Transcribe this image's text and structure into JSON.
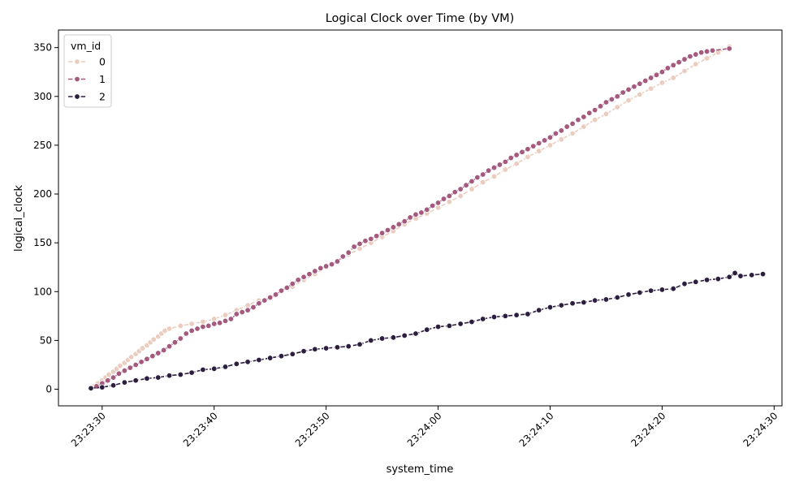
{
  "chart_data": {
    "type": "line",
    "title": "Logical Clock over Time (by VM)",
    "xlabel": "system_time",
    "ylabel": "logical_clock",
    "x_ticks": [
      "23:23:30",
      "23:23:40",
      "23:23:50",
      "23:24:00",
      "23:24:10",
      "23:24:20",
      "23:24:30"
    ],
    "x_tick_values": [
      1.0,
      11.0,
      21.0,
      31.0,
      41.0,
      51.0,
      61.0
    ],
    "x_unit": "seconds after 23:23:29",
    "xlim": [
      -2.9,
      61.7
    ],
    "y_ticks": [
      0,
      50,
      100,
      150,
      200,
      250,
      300,
      350
    ],
    "ylim": [
      -17,
      368
    ],
    "legend": {
      "title": "vm_id",
      "placement": "top-left"
    },
    "grid": false,
    "series": [
      {
        "name": "0",
        "color": "#ebcdc0",
        "points": [
          [
            0.0,
            1
          ],
          [
            0.3,
            3
          ],
          [
            0.6,
            6
          ],
          [
            1.0,
            9
          ],
          [
            1.3,
            12
          ],
          [
            1.6,
            15
          ],
          [
            2.0,
            18
          ],
          [
            2.3,
            21
          ],
          [
            2.6,
            24
          ],
          [
            3.0,
            27
          ],
          [
            3.3,
            30
          ],
          [
            3.6,
            33
          ],
          [
            4.0,
            36
          ],
          [
            4.3,
            39
          ],
          [
            4.6,
            42
          ],
          [
            5.0,
            45
          ],
          [
            5.3,
            48
          ],
          [
            5.6,
            51
          ],
          [
            6.0,
            54
          ],
          [
            6.3,
            57
          ],
          [
            6.6,
            60
          ],
          [
            7.0,
            62
          ],
          [
            8.0,
            65
          ],
          [
            9.0,
            67
          ],
          [
            10.0,
            69
          ],
          [
            11.0,
            72
          ],
          [
            12.0,
            76
          ],
          [
            13.0,
            81
          ],
          [
            14.0,
            86
          ],
          [
            15.0,
            91
          ],
          [
            16.0,
            95
          ],
          [
            17.0,
            100
          ],
          [
            18.0,
            105
          ],
          [
            19.0,
            112
          ],
          [
            20.0,
            118
          ],
          [
            21.0,
            125
          ],
          [
            22.0,
            131
          ],
          [
            23.0,
            138
          ],
          [
            24.0,
            144
          ],
          [
            25.0,
            150
          ],
          [
            26.0,
            156
          ],
          [
            27.0,
            162
          ],
          [
            28.0,
            169
          ],
          [
            29.0,
            175
          ],
          [
            30.0,
            180
          ],
          [
            31.0,
            186
          ],
          [
            32.0,
            192
          ],
          [
            33.0,
            198
          ],
          [
            34.0,
            205
          ],
          [
            35.0,
            212
          ],
          [
            36.0,
            218
          ],
          [
            37.0,
            225
          ],
          [
            38.0,
            231
          ],
          [
            39.0,
            238
          ],
          [
            40.0,
            244
          ],
          [
            41.0,
            250
          ],
          [
            42.0,
            256
          ],
          [
            43.0,
            262
          ],
          [
            44.0,
            269
          ],
          [
            45.0,
            276
          ],
          [
            46.0,
            282
          ],
          [
            47.0,
            289
          ],
          [
            48.0,
            296
          ],
          [
            49.0,
            302
          ],
          [
            50.0,
            308
          ],
          [
            51.0,
            314
          ],
          [
            52.0,
            319
          ],
          [
            53.0,
            326
          ],
          [
            54.0,
            333
          ],
          [
            55.0,
            339
          ],
          [
            56.0,
            345
          ],
          [
            57.0,
            351
          ]
        ]
      },
      {
        "name": "1",
        "color": "#a4597e",
        "points": [
          [
            0.0,
            1
          ],
          [
            0.5,
            3
          ],
          [
            1.0,
            6
          ],
          [
            1.5,
            9
          ],
          [
            2.0,
            12
          ],
          [
            2.5,
            16
          ],
          [
            3.0,
            19
          ],
          [
            3.5,
            22
          ],
          [
            4.0,
            25
          ],
          [
            4.5,
            28
          ],
          [
            5.0,
            31
          ],
          [
            5.5,
            34
          ],
          [
            6.0,
            37
          ],
          [
            6.5,
            40
          ],
          [
            7.0,
            44
          ],
          [
            7.5,
            48
          ],
          [
            8.0,
            52
          ],
          [
            8.5,
            57
          ],
          [
            9.0,
            60
          ],
          [
            9.5,
            62
          ],
          [
            10.0,
            64
          ],
          [
            10.5,
            65
          ],
          [
            11.0,
            67
          ],
          [
            11.5,
            68
          ],
          [
            12.0,
            70
          ],
          [
            12.5,
            72
          ],
          [
            13.0,
            77
          ],
          [
            13.5,
            79
          ],
          [
            14.0,
            81
          ],
          [
            14.5,
            84
          ],
          [
            15.0,
            88
          ],
          [
            15.5,
            91
          ],
          [
            16.0,
            94
          ],
          [
            16.5,
            97
          ],
          [
            17.0,
            101
          ],
          [
            17.5,
            104
          ],
          [
            18.0,
            108
          ],
          [
            18.5,
            112
          ],
          [
            19.0,
            115
          ],
          [
            19.5,
            118
          ],
          [
            20.0,
            121
          ],
          [
            20.5,
            124
          ],
          [
            21.0,
            126
          ],
          [
            21.5,
            128
          ],
          [
            22.0,
            131
          ],
          [
            22.5,
            136
          ],
          [
            23.0,
            140
          ],
          [
            23.5,
            146
          ],
          [
            24.0,
            149
          ],
          [
            24.5,
            152
          ],
          [
            25.0,
            154
          ],
          [
            25.5,
            157
          ],
          [
            26.0,
            160
          ],
          [
            26.5,
            163
          ],
          [
            27.0,
            166
          ],
          [
            27.5,
            169
          ],
          [
            28.0,
            172
          ],
          [
            28.5,
            176
          ],
          [
            29.0,
            179
          ],
          [
            29.5,
            181
          ],
          [
            30.0,
            184
          ],
          [
            30.5,
            188
          ],
          [
            31.0,
            191
          ],
          [
            31.5,
            195
          ],
          [
            32.0,
            198
          ],
          [
            32.5,
            202
          ],
          [
            33.0,
            205
          ],
          [
            33.5,
            209
          ],
          [
            34.0,
            213
          ],
          [
            34.5,
            217
          ],
          [
            35.0,
            220
          ],
          [
            35.5,
            224
          ],
          [
            36.0,
            227
          ],
          [
            36.5,
            230
          ],
          [
            37.0,
            233
          ],
          [
            37.5,
            237
          ],
          [
            38.0,
            240
          ],
          [
            38.5,
            243
          ],
          [
            39.0,
            246
          ],
          [
            39.5,
            249
          ],
          [
            40.0,
            252
          ],
          [
            40.5,
            255
          ],
          [
            41.0,
            258
          ],
          [
            41.5,
            262
          ],
          [
            42.0,
            265
          ],
          [
            42.5,
            269
          ],
          [
            43.0,
            272
          ],
          [
            43.5,
            276
          ],
          [
            44.0,
            279
          ],
          [
            44.5,
            283
          ],
          [
            45.0,
            286
          ],
          [
            45.5,
            290
          ],
          [
            46.0,
            294
          ],
          [
            46.5,
            297
          ],
          [
            47.0,
            300
          ],
          [
            47.5,
            304
          ],
          [
            48.0,
            307
          ],
          [
            48.5,
            310
          ],
          [
            49.0,
            313
          ],
          [
            49.5,
            316
          ],
          [
            50.0,
            319
          ],
          [
            50.5,
            322
          ],
          [
            51.0,
            325
          ],
          [
            51.5,
            329
          ],
          [
            52.0,
            332
          ],
          [
            52.5,
            335
          ],
          [
            53.0,
            338
          ],
          [
            53.5,
            341
          ],
          [
            54.0,
            343
          ],
          [
            54.5,
            345
          ],
          [
            55.0,
            346
          ],
          [
            55.5,
            347
          ],
          [
            57.0,
            349
          ]
        ]
      },
      {
        "name": "2",
        "color": "#2c1e3e",
        "points": [
          [
            0.0,
            1
          ],
          [
            1.0,
            2
          ],
          [
            2.0,
            4
          ],
          [
            3.0,
            7
          ],
          [
            4.0,
            9
          ],
          [
            5.0,
            11
          ],
          [
            6.0,
            12
          ],
          [
            7.0,
            14
          ],
          [
            8.0,
            15
          ],
          [
            9.0,
            17
          ],
          [
            10.0,
            20
          ],
          [
            11.0,
            21
          ],
          [
            12.0,
            23
          ],
          [
            13.0,
            26
          ],
          [
            14.0,
            28
          ],
          [
            15.0,
            30
          ],
          [
            16.0,
            32
          ],
          [
            17.0,
            34
          ],
          [
            18.0,
            36
          ],
          [
            19.0,
            39
          ],
          [
            20.0,
            41
          ],
          [
            21.0,
            42
          ],
          [
            22.0,
            43
          ],
          [
            23.0,
            44
          ],
          [
            24.0,
            46
          ],
          [
            25.0,
            50
          ],
          [
            26.0,
            52
          ],
          [
            27.0,
            53
          ],
          [
            28.0,
            55
          ],
          [
            29.0,
            57
          ],
          [
            30.0,
            61
          ],
          [
            31.0,
            64
          ],
          [
            32.0,
            65
          ],
          [
            33.0,
            67
          ],
          [
            34.0,
            69
          ],
          [
            35.0,
            72
          ],
          [
            36.0,
            74
          ],
          [
            37.0,
            75
          ],
          [
            38.0,
            76
          ],
          [
            39.0,
            77
          ],
          [
            40.0,
            81
          ],
          [
            41.0,
            84
          ],
          [
            42.0,
            86
          ],
          [
            43.0,
            88
          ],
          [
            44.0,
            89
          ],
          [
            45.0,
            91
          ],
          [
            46.0,
            92
          ],
          [
            47.0,
            94
          ],
          [
            48.0,
            97
          ],
          [
            49.0,
            99
          ],
          [
            50.0,
            101
          ],
          [
            51.0,
            102
          ],
          [
            52.0,
            103
          ],
          [
            53.0,
            108
          ],
          [
            54.0,
            110
          ],
          [
            55.0,
            112
          ],
          [
            56.0,
            113
          ],
          [
            57.0,
            115
          ],
          [
            58.0,
            116
          ],
          [
            59.0,
            117
          ],
          [
            60.0,
            118
          ],
          [
            57.5,
            119
          ]
        ]
      }
    ]
  }
}
